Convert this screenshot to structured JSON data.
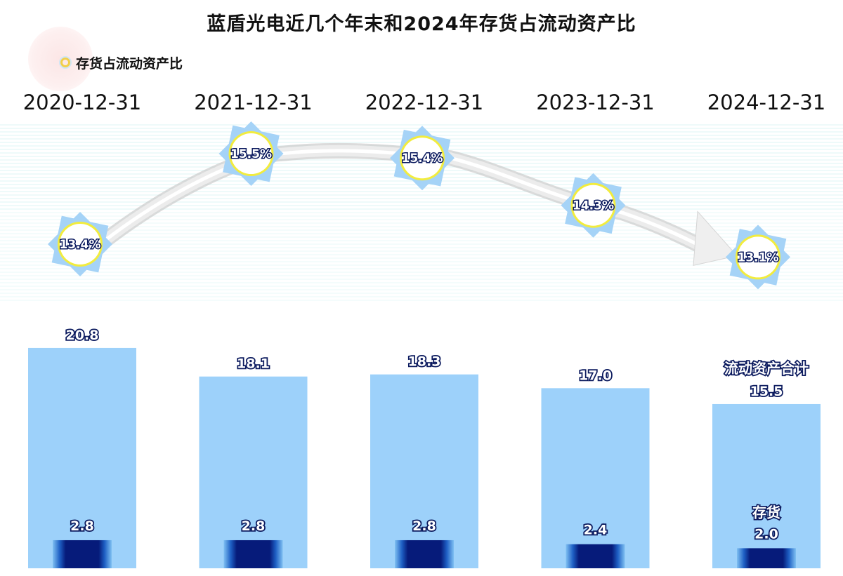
{
  "title": "蓝盾光电近几个年末和2024年存货占流动资产比",
  "legend": {
    "label": "存货占流动资产比"
  },
  "colors": {
    "current_assets_bar": "#9dd1fa",
    "inventory_bar": "#061b7a",
    "inventory_bar_edge": "#3f8fe0",
    "diamond": "#a5d3f7",
    "circle_ring": "#f2ec3e",
    "arrow": "#e6e6e6"
  },
  "chart_data": {
    "type": "bar",
    "categories": [
      "2020-12-31",
      "2021-12-31",
      "2022-12-31",
      "2023-12-31",
      "2024-12-31"
    ],
    "series": [
      {
        "name": "流动资产合计",
        "values": [
          20.8,
          18.1,
          18.3,
          17.0,
          15.5
        ]
      },
      {
        "name": "存货",
        "values": [
          2.8,
          2.8,
          2.8,
          2.4,
          2.0
        ]
      }
    ],
    "value_labels": {
      "current_assets": [
        "20.8",
        "18.1",
        "18.3",
        "17.0",
        "15.5"
      ],
      "inventory": [
        "2.8",
        "2.8",
        "2.8",
        "2.4",
        "2.0"
      ]
    },
    "ratio_series": {
      "name": "存货占流动资产比",
      "values": [
        13.4,
        15.5,
        15.4,
        14.3,
        13.1
      ],
      "labels": [
        "13.4%",
        "15.5%",
        "15.4%",
        "14.3%",
        "13.1%"
      ]
    }
  }
}
